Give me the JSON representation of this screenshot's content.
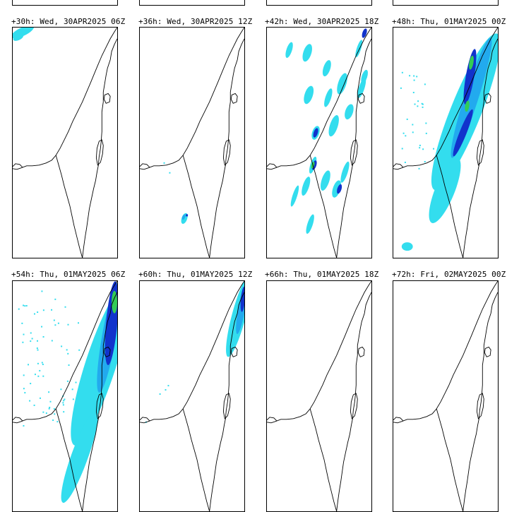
{
  "panels": [
    {
      "label": "+30h: Wed, 30APR2025 06Z",
      "precip": "trace"
    },
    {
      "label": "+36h: Wed, 30APR2025 12Z",
      "precip": "light"
    },
    {
      "label": "+42h: Wed, 30APR2025 18Z",
      "precip": "moderate"
    },
    {
      "label": "+48h: Thu, 01MAY2025 00Z",
      "precip": "heavy"
    },
    {
      "label": "+54h: Thu, 01MAY2025 06Z",
      "precip": "heavy"
    },
    {
      "label": "+60h: Thu, 01MAY2025 12Z",
      "precip": "moderate"
    },
    {
      "label": "+66h: Thu, 01MAY2025 18Z",
      "precip": "none"
    },
    {
      "label": "+72h: Fri, 02MAY2025 00Z",
      "precip": "none"
    }
  ],
  "colors": {
    "light": "#33ddee",
    "medium": "#22aaee",
    "heavy": "#1133cc",
    "extreme": "#33cc55",
    "border": "#000000"
  }
}
